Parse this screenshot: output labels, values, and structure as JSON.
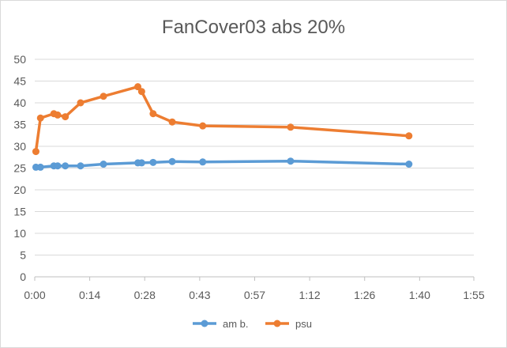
{
  "chart_data": {
    "type": "line",
    "title": "FanCover03 abs 20%",
    "xlabel": "",
    "ylabel": "",
    "x_unit": "minutes",
    "xlim": [
      0,
      115
    ],
    "x_ticks": [
      0,
      14.4,
      28.8,
      43.2,
      57.6,
      72,
      86.4,
      100.8,
      115.2
    ],
    "x_tick_labels": [
      "0:00",
      "0:14",
      "0:28",
      "0:43",
      "0:57",
      "1:12",
      "1:26",
      "1:40",
      "1:55"
    ],
    "ylim": [
      0,
      50
    ],
    "y_ticks": [
      0,
      5,
      10,
      15,
      20,
      25,
      30,
      35,
      40,
      45,
      50
    ],
    "y_tick_labels": [
      "0",
      "5",
      "10",
      "15",
      "20",
      "25",
      "30",
      "35",
      "40",
      "45",
      "50"
    ],
    "grid": true,
    "legend_position": "bottom",
    "series": [
      {
        "name": "am b.",
        "color": "#5b9bd5",
        "points": [
          {
            "x": 0.3,
            "y": 25.2
          },
          {
            "x": 1.5,
            "y": 25.2
          },
          {
            "x": 5.0,
            "y": 25.5
          },
          {
            "x": 6.0,
            "y": 25.5
          },
          {
            "x": 8.0,
            "y": 25.5
          },
          {
            "x": 12.0,
            "y": 25.5
          },
          {
            "x": 18.0,
            "y": 25.9
          },
          {
            "x": 27.0,
            "y": 26.2
          },
          {
            "x": 28.0,
            "y": 26.2
          },
          {
            "x": 31.0,
            "y": 26.3
          },
          {
            "x": 36.0,
            "y": 26.5
          },
          {
            "x": 44.0,
            "y": 26.4
          },
          {
            "x": 67.0,
            "y": 26.6
          },
          {
            "x": 98.0,
            "y": 25.9
          }
        ]
      },
      {
        "name": "psu",
        "color": "#ed7d31",
        "points": [
          {
            "x": 0.3,
            "y": 28.8
          },
          {
            "x": 1.5,
            "y": 36.5
          },
          {
            "x": 5.0,
            "y": 37.5
          },
          {
            "x": 6.0,
            "y": 37.2
          },
          {
            "x": 8.0,
            "y": 36.8
          },
          {
            "x": 12.0,
            "y": 40.0
          },
          {
            "x": 18.0,
            "y": 41.5
          },
          {
            "x": 27.0,
            "y": 43.7
          },
          {
            "x": 28.0,
            "y": 42.6
          },
          {
            "x": 31.0,
            "y": 37.5
          },
          {
            "x": 36.0,
            "y": 35.6
          },
          {
            "x": 44.0,
            "y": 34.7
          },
          {
            "x": 67.0,
            "y": 34.4
          },
          {
            "x": 98.0,
            "y": 32.4
          }
        ]
      }
    ]
  }
}
